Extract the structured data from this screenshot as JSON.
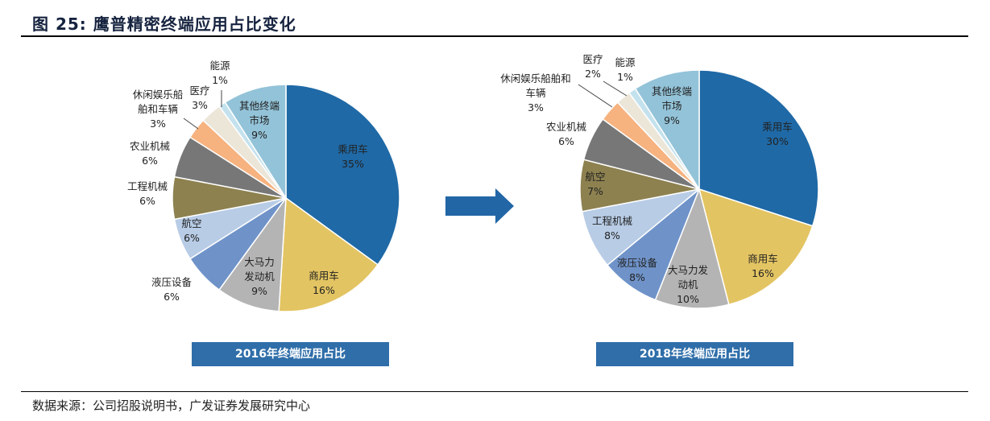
{
  "title": "图 25: 鹰普精密终端应用占比变化",
  "source": "数据来源：公司招股说明书，广发证券发展研究中心",
  "arrow_icon": "right-arrow",
  "chart_data": [
    {
      "type": "pie",
      "caption": "2016年终端应用占比",
      "labels": [
        "乘用车",
        "商用车",
        "大马力发动机",
        "液压设备",
        "航空",
        "工程机械",
        "农业机械",
        "休闲娱乐船舶和车辆",
        "医疗",
        "能源",
        "其他终端市场"
      ],
      "label_lines": [
        [
          "乘用车"
        ],
        [
          "商用车"
        ],
        [
          "大马力",
          "发动机"
        ],
        [
          "液压设备"
        ],
        [
          "航空"
        ],
        [
          "工程机械"
        ],
        [
          "农业机械"
        ],
        [
          "休闲娱乐船",
          "舶和车辆"
        ],
        [
          "医疗"
        ],
        [
          "能源"
        ],
        [
          "其他终端",
          "市场"
        ]
      ],
      "values": [
        35,
        16,
        9,
        6,
        6,
        6,
        6,
        3,
        3,
        1,
        9
      ],
      "value_labels": [
        "35%",
        "16%",
        "9%",
        "6%",
        "6%",
        "6%",
        "6%",
        "3%",
        "3%",
        "1%",
        "9%"
      ],
      "colors": [
        "#1f69a6",
        "#e3c462",
        "#b4b4b4",
        "#6f93c9",
        "#b8cce6",
        "#8d8150",
        "#777777",
        "#f6b27f",
        "#ece6d9",
        "#c4e2ee",
        "#93c3d8"
      ]
    },
    {
      "type": "pie",
      "caption": "2018年终端应用占比",
      "labels": [
        "乘用车",
        "商用车",
        "大马力发动机",
        "液压设备",
        "工程机械",
        "航空",
        "农业机械",
        "休闲娱乐船舶和车辆",
        "医疗",
        "能源",
        "其他终端市场"
      ],
      "label_lines": [
        [
          "乘用车"
        ],
        [
          "商用车"
        ],
        [
          "大马力发",
          "动机"
        ],
        [
          "液压设备"
        ],
        [
          "工程机械"
        ],
        [
          "航空"
        ],
        [
          "农业机械"
        ],
        [
          "休闲娱乐船舶和",
          "车辆"
        ],
        [
          "医疗"
        ],
        [
          "能源"
        ],
        [
          "其他终端",
          "市场"
        ]
      ],
      "values": [
        30,
        16,
        10,
        8,
        8,
        7,
        6,
        3,
        2,
        1,
        9
      ],
      "value_labels": [
        "30%",
        "16%",
        "10%",
        "8%",
        "8%",
        "7%",
        "6%",
        "3%",
        "2%",
        "1%",
        "9%"
      ],
      "colors": [
        "#1f69a6",
        "#e3c462",
        "#b4b4b4",
        "#6f93c9",
        "#b8cce6",
        "#8d8150",
        "#777777",
        "#f6b27f",
        "#ece6d9",
        "#c4e2ee",
        "#93c3d8"
      ]
    }
  ]
}
